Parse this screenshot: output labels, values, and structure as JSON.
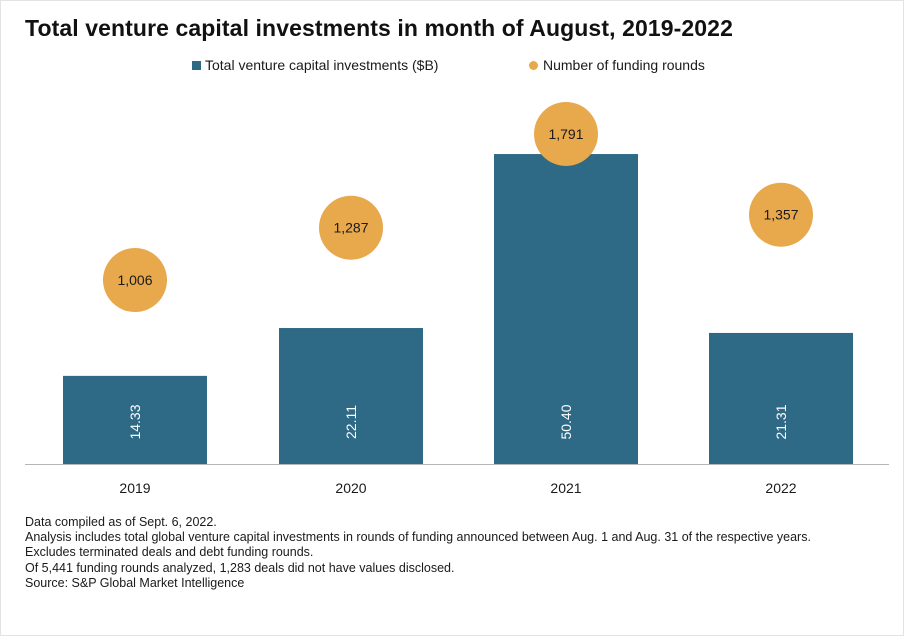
{
  "title": "Total venture capital investments in month of August, 2019-2022",
  "legend": {
    "investments": "Total venture capital investments ($B)",
    "rounds": "Number of funding rounds"
  },
  "colors": {
    "bar": "#2e6a86",
    "bubble": "#e8a84c",
    "axis": "#b5b5b5"
  },
  "chart_data": {
    "type": "bar",
    "categories": [
      "2019",
      "2020",
      "2021",
      "2022"
    ],
    "series": [
      {
        "name": "Total venture capital investments ($B)",
        "type": "bar",
        "values": [
          14.33,
          22.11,
          50.4,
          21.31
        ],
        "labels": [
          "14.33",
          "22.11",
          "50.40",
          "21.31"
        ]
      },
      {
        "name": "Number of funding rounds",
        "type": "bubble",
        "values": [
          1006,
          1287,
          1791,
          1357
        ],
        "labels": [
          "1,006",
          "1,287",
          "1,791",
          "1,357"
        ]
      }
    ],
    "legend_position": "top-center",
    "grid": false
  },
  "footnotes": [
    "Data compiled as of Sept. 6, 2022.",
    "Analysis includes total global venture capital investments in rounds of funding announced between Aug. 1 and Aug. 31 of the respective years.",
    "Excludes terminated deals and debt funding rounds.",
    "Of 5,441 funding rounds analyzed, 1,283 deals did not have values disclosed.",
    "Source: S&P Global Market Intelligence"
  ]
}
